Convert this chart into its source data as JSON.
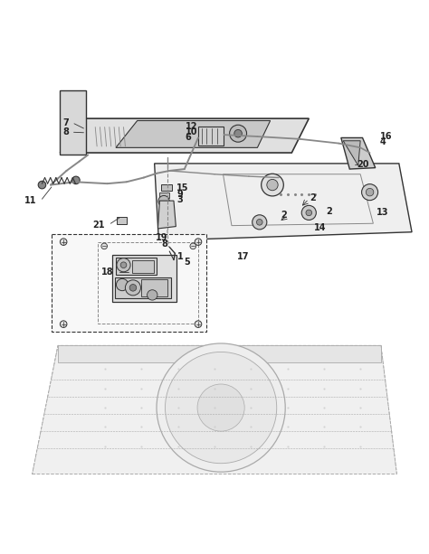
{
  "bg_color": "#ffffff",
  "line_color": "#555555",
  "dark_color": "#333333",
  "light_gray": "#aaaaaa",
  "mid_gray": "#888888",
  "figsize": [
    4.74,
    6.13
  ],
  "dpi": 100
}
